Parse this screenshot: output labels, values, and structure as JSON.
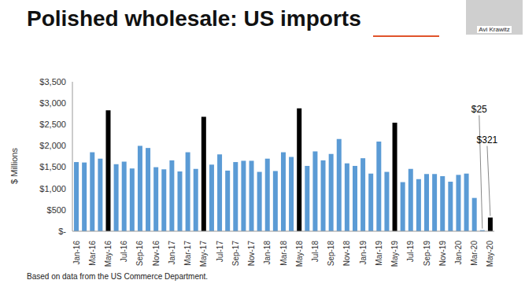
{
  "chart_data": {
    "type": "bar",
    "title": "Polished wholesale: US imports",
    "y_label": "$ Millions",
    "footnote": "Based on data from the US Commerce Department.",
    "speaker": "Avi Krawitz",
    "categories": [
      "Jan-16",
      null,
      "Mar-16",
      null,
      "May-16",
      null,
      "Jul-16",
      null,
      "Sep-16",
      null,
      "Nov-16",
      null,
      "Jan-17",
      null,
      "Mar-17",
      null,
      "May-17",
      null,
      "Jul-17",
      null,
      "Sep-17",
      null,
      "Nov-17",
      null,
      "Jan-18",
      null,
      "Mar-18",
      null,
      "May-18",
      null,
      "Jul-18",
      null,
      "Sep-18",
      null,
      "Nov-18",
      null,
      "Jan-19",
      null,
      "Mar-19",
      null,
      "May-19",
      null,
      "Jul-19",
      null,
      "Sep-19",
      null,
      "Nov-19",
      null,
      "Jan-20",
      null,
      "Mar-20",
      null,
      "May-20"
    ],
    "values": [
      1620,
      1610,
      1850,
      1700,
      2830,
      1570,
      1630,
      1470,
      2000,
      1950,
      1500,
      1450,
      1660,
      1400,
      1850,
      1460,
      2680,
      1560,
      1800,
      1420,
      1620,
      1650,
      1650,
      1390,
      1700,
      1410,
      1850,
      1740,
      2880,
      1530,
      1870,
      1660,
      1810,
      2160,
      1590,
      1530,
      1710,
      1350,
      2100,
      1390,
      2540,
      1150,
      1460,
      1220,
      1340,
      1340,
      1290,
      1160,
      1320,
      1350,
      780,
      25,
      321
    ],
    "value_labels": [
      null,
      null,
      null,
      null,
      null,
      null,
      null,
      null,
      null,
      null,
      null,
      null,
      null,
      null,
      null,
      null,
      null,
      null,
      null,
      null,
      null,
      null,
      null,
      null,
      null,
      null,
      null,
      null,
      null,
      null,
      null,
      null,
      null,
      null,
      null,
      null,
      null,
      null,
      null,
      null,
      null,
      null,
      null,
      null,
      null,
      null,
      null,
      null,
      null,
      null,
      null,
      "$25",
      "$321"
    ],
    "data_labels": true,
    "colors": [
      "#5b9bd5",
      "#5b9bd5",
      "#5b9bd5",
      "#5b9bd5",
      "#000000",
      "#5b9bd5",
      "#5b9bd5",
      "#5b9bd5",
      "#5b9bd5",
      "#5b9bd5",
      "#5b9bd5",
      "#5b9bd5",
      "#5b9bd5",
      "#5b9bd5",
      "#5b9bd5",
      "#5b9bd5",
      "#000000",
      "#5b9bd5",
      "#5b9bd5",
      "#5b9bd5",
      "#5b9bd5",
      "#5b9bd5",
      "#5b9bd5",
      "#5b9bd5",
      "#5b9bd5",
      "#5b9bd5",
      "#5b9bd5",
      "#5b9bd5",
      "#000000",
      "#5b9bd5",
      "#5b9bd5",
      "#5b9bd5",
      "#5b9bd5",
      "#5b9bd5",
      "#5b9bd5",
      "#5b9bd5",
      "#5b9bd5",
      "#5b9bd5",
      "#5b9bd5",
      "#5b9bd5",
      "#000000",
      "#5b9bd5",
      "#5b9bd5",
      "#5b9bd5",
      "#5b9bd5",
      "#5b9bd5",
      "#5b9bd5",
      "#5b9bd5",
      "#5b9bd5",
      "#5b9bd5",
      "#5b9bd5",
      "#5b9bd5",
      "#000000"
    ],
    "ylim": [
      0,
      3500
    ],
    "yticks": [
      {
        "value": 0,
        "label": "$-"
      },
      {
        "value": 500,
        "label": "$500"
      },
      {
        "value": 1000,
        "label": "$1,000"
      },
      {
        "value": 1500,
        "label": "$1,500"
      },
      {
        "value": 2000,
        "label": "$2,000"
      },
      {
        "value": 2500,
        "label": "$2,500"
      },
      {
        "value": 3000,
        "label": "$3,000"
      },
      {
        "value": 3500,
        "label": "$3,500"
      }
    ],
    "grid": false
  }
}
